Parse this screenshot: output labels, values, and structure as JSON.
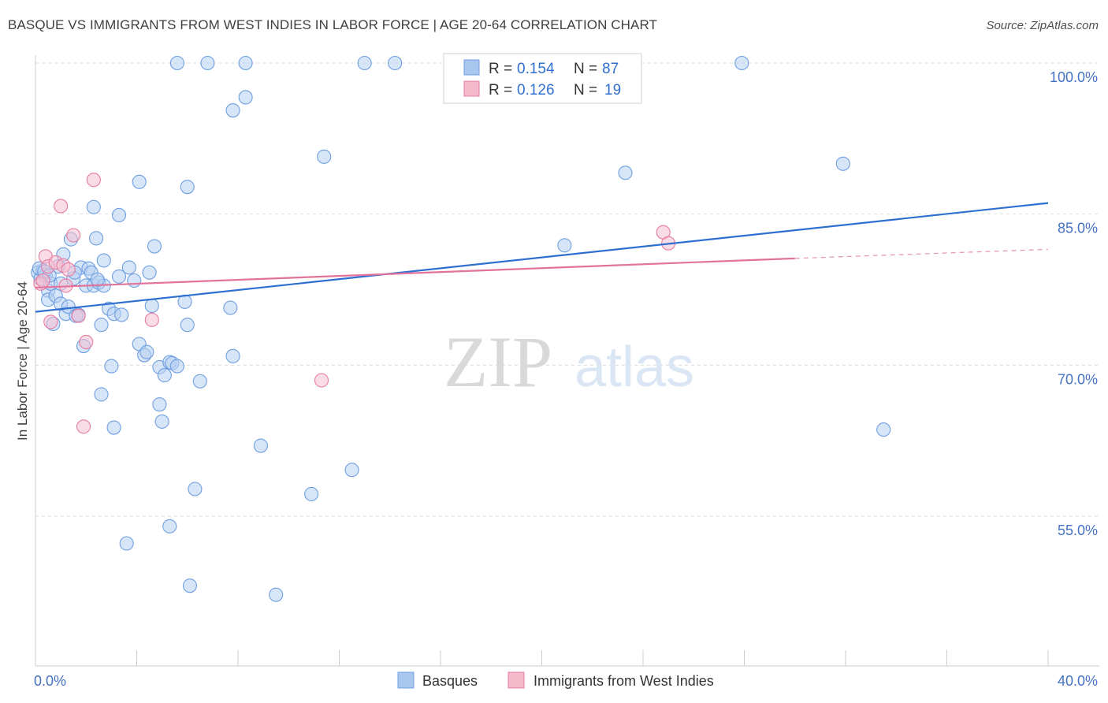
{
  "header": {
    "title": "BASQUE VS IMMIGRANTS FROM WEST INDIES IN LABOR FORCE | AGE 20-64 CORRELATION CHART",
    "source": "Source: ZipAtlas.com"
  },
  "watermark": {
    "zip": "ZIP",
    "atlas": "atlas"
  },
  "legend": {
    "r_label": "R =",
    "n_label": "N =",
    "rows": [
      {
        "r": "0.154",
        "n": "87",
        "color": "#a9c6ef"
      },
      {
        "r": "0.126",
        "n": "19",
        "color": "#f6b8cb"
      }
    ]
  },
  "chart_data": {
    "type": "scatter",
    "title": "BASQUE VS IMMIGRANTS FROM WEST INDIES IN LABOR FORCE | AGE 20-64 CORRELATION CHART",
    "xlabel": "",
    "ylabel": "In Labor Force | Age 20-64",
    "xlim": [
      0,
      40
    ],
    "ylim": [
      40,
      102
    ],
    "x_tick_labels": [
      "0.0%",
      "40.0%"
    ],
    "y_ticks": [
      {
        "value": 100,
        "label": "100.0%"
      },
      {
        "value": 85,
        "label": "85.0%"
      },
      {
        "value": 70,
        "label": "70.0%"
      },
      {
        "value": 55,
        "label": "55.0%"
      }
    ],
    "grid": true,
    "legend_position": "top-center and bottom",
    "series": [
      {
        "name": "Basques",
        "color": "#6f9fe0",
        "fill": "#b7d0f2",
        "trend": {
          "x": [
            0,
            40
          ],
          "y": [
            75.3,
            86.1
          ]
        },
        "points": [
          [
            0.1,
            79.2
          ],
          [
            0.2,
            78.6
          ],
          [
            0.3,
            79.4
          ],
          [
            0.4,
            78.9
          ],
          [
            0.5,
            77.4
          ],
          [
            0.5,
            76.5
          ],
          [
            0.6,
            78.1
          ],
          [
            0.7,
            74.1
          ],
          [
            0.8,
            76.9
          ],
          [
            0.9,
            79.8
          ],
          [
            1.0,
            76.1
          ],
          [
            1.1,
            81.0
          ],
          [
            1.2,
            75.1
          ],
          [
            1.3,
            75.8
          ],
          [
            1.4,
            82.5
          ],
          [
            1.5,
            78.6
          ],
          [
            1.6,
            74.9
          ],
          [
            1.7,
            75.0
          ],
          [
            1.8,
            79.7
          ],
          [
            1.9,
            71.9
          ],
          [
            2.0,
            77.9
          ],
          [
            2.1,
            79.6
          ],
          [
            2.2,
            79.2
          ],
          [
            2.3,
            85.7
          ],
          [
            2.3,
            77.9
          ],
          [
            2.4,
            82.6
          ],
          [
            2.5,
            78.2
          ],
          [
            2.6,
            67.1
          ],
          [
            2.6,
            74.0
          ],
          [
            2.7,
            77.9
          ],
          [
            2.7,
            80.4
          ],
          [
            2.9,
            75.6
          ],
          [
            3.0,
            69.9
          ],
          [
            3.1,
            75.1
          ],
          [
            3.1,
            63.8
          ],
          [
            3.3,
            78.8
          ],
          [
            3.3,
            84.9
          ],
          [
            3.4,
            75.0
          ],
          [
            3.6,
            52.3
          ],
          [
            3.7,
            79.7
          ],
          [
            3.9,
            78.4
          ],
          [
            4.1,
            88.2
          ],
          [
            4.1,
            72.1
          ],
          [
            4.3,
            71.0
          ],
          [
            4.4,
            71.3
          ],
          [
            4.5,
            79.2
          ],
          [
            4.6,
            75.9
          ],
          [
            4.7,
            81.8
          ],
          [
            4.9,
            69.8
          ],
          [
            4.9,
            66.1
          ],
          [
            5.0,
            64.4
          ],
          [
            5.1,
            69.0
          ],
          [
            5.3,
            54.0
          ],
          [
            5.3,
            70.3
          ],
          [
            5.4,
            70.2
          ],
          [
            5.6,
            100.0
          ],
          [
            5.6,
            69.9
          ],
          [
            5.9,
            76.3
          ],
          [
            6.0,
            74.0
          ],
          [
            6.0,
            87.7
          ],
          [
            6.1,
            48.1
          ],
          [
            6.3,
            57.7
          ],
          [
            6.5,
            68.4
          ],
          [
            6.8,
            100.0
          ],
          [
            7.7,
            75.7
          ],
          [
            7.8,
            95.3
          ],
          [
            7.8,
            70.9
          ],
          [
            8.3,
            100.0
          ],
          [
            8.3,
            96.6
          ],
          [
            8.9,
            62.0
          ],
          [
            9.5,
            47.2
          ],
          [
            10.9,
            57.2
          ],
          [
            11.4,
            90.7
          ],
          [
            12.5,
            59.6
          ],
          [
            13.0,
            100.0
          ],
          [
            14.2,
            100.0
          ],
          [
            20.9,
            81.9
          ],
          [
            23.3,
            89.1
          ],
          [
            27.9,
            100.0
          ],
          [
            31.9,
            90.0
          ],
          [
            33.5,
            63.6
          ],
          [
            0.15,
            79.6
          ],
          [
            0.35,
            79.3
          ],
          [
            0.55,
            78.9
          ],
          [
            1.0,
            78.1
          ],
          [
            1.55,
            79.2
          ],
          [
            2.45,
            78.5
          ]
        ]
      },
      {
        "name": "Immigrants from West Indies",
        "color": "#e77ca1",
        "fill": "#f6c0d1",
        "trend": {
          "x": [
            0,
            30
          ],
          "y": [
            77.7,
            80.6
          ]
        },
        "trend_dashed": {
          "x": [
            30,
            40
          ],
          "y": [
            80.6,
            81.5
          ]
        },
        "points": [
          [
            0.2,
            78.1
          ],
          [
            0.4,
            80.8
          ],
          [
            0.5,
            79.8
          ],
          [
            0.6,
            74.3
          ],
          [
            0.8,
            80.2
          ],
          [
            1.0,
            85.8
          ],
          [
            1.1,
            79.9
          ],
          [
            1.2,
            77.9
          ],
          [
            1.3,
            79.5
          ],
          [
            1.5,
            82.9
          ],
          [
            1.7,
            74.9
          ],
          [
            1.9,
            63.9
          ],
          [
            2.0,
            72.3
          ],
          [
            2.3,
            88.4
          ],
          [
            4.6,
            74.5
          ],
          [
            11.3,
            68.5
          ],
          [
            24.8,
            83.2
          ],
          [
            25.0,
            82.1
          ],
          [
            0.3,
            78.4
          ]
        ]
      }
    ]
  },
  "bottom_legend": [
    {
      "label": "Basques",
      "color": "#a9c6ef"
    },
    {
      "label": "Immigrants from West Indies",
      "color": "#f6b8cb"
    }
  ]
}
